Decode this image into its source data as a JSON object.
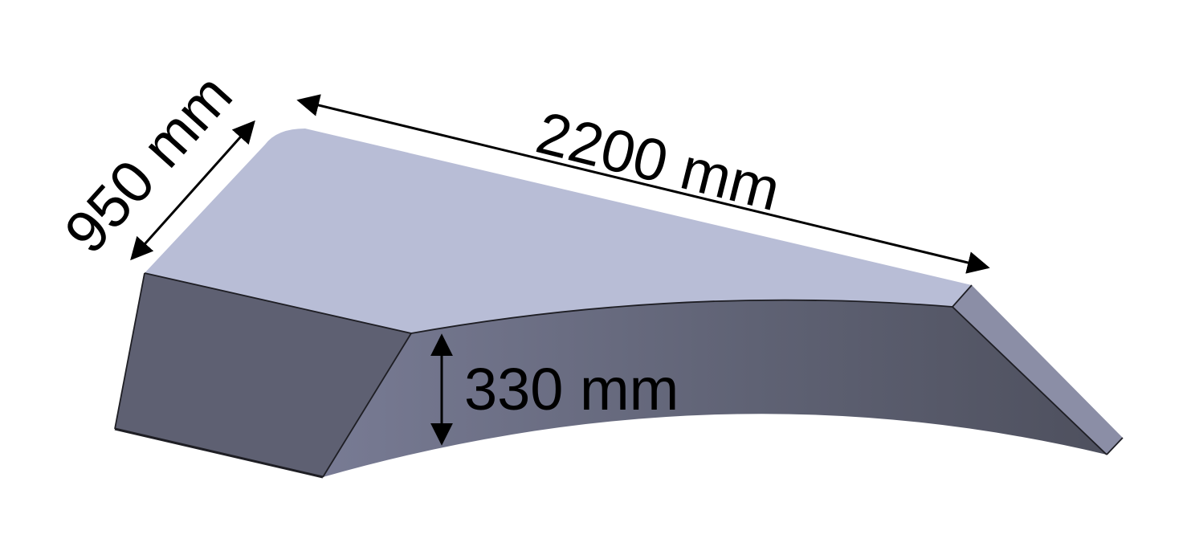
{
  "figure": {
    "subject": "wedge-shaped solid block with curved underside",
    "colors": {
      "top_face": "#b8bdd6",
      "front_face": "#5f6274",
      "side_face": "#6e7086",
      "tip_face": "#8b8ea6",
      "edge": "#1e1e24",
      "dimension": "#000000"
    }
  },
  "dimensions": {
    "length": {
      "label": "2200 mm",
      "value": 2200,
      "unit": "mm"
    },
    "width": {
      "label": "950 mm",
      "value": 950,
      "unit": "mm"
    },
    "height": {
      "label": "330 mm",
      "value": 330,
      "unit": "mm"
    }
  }
}
